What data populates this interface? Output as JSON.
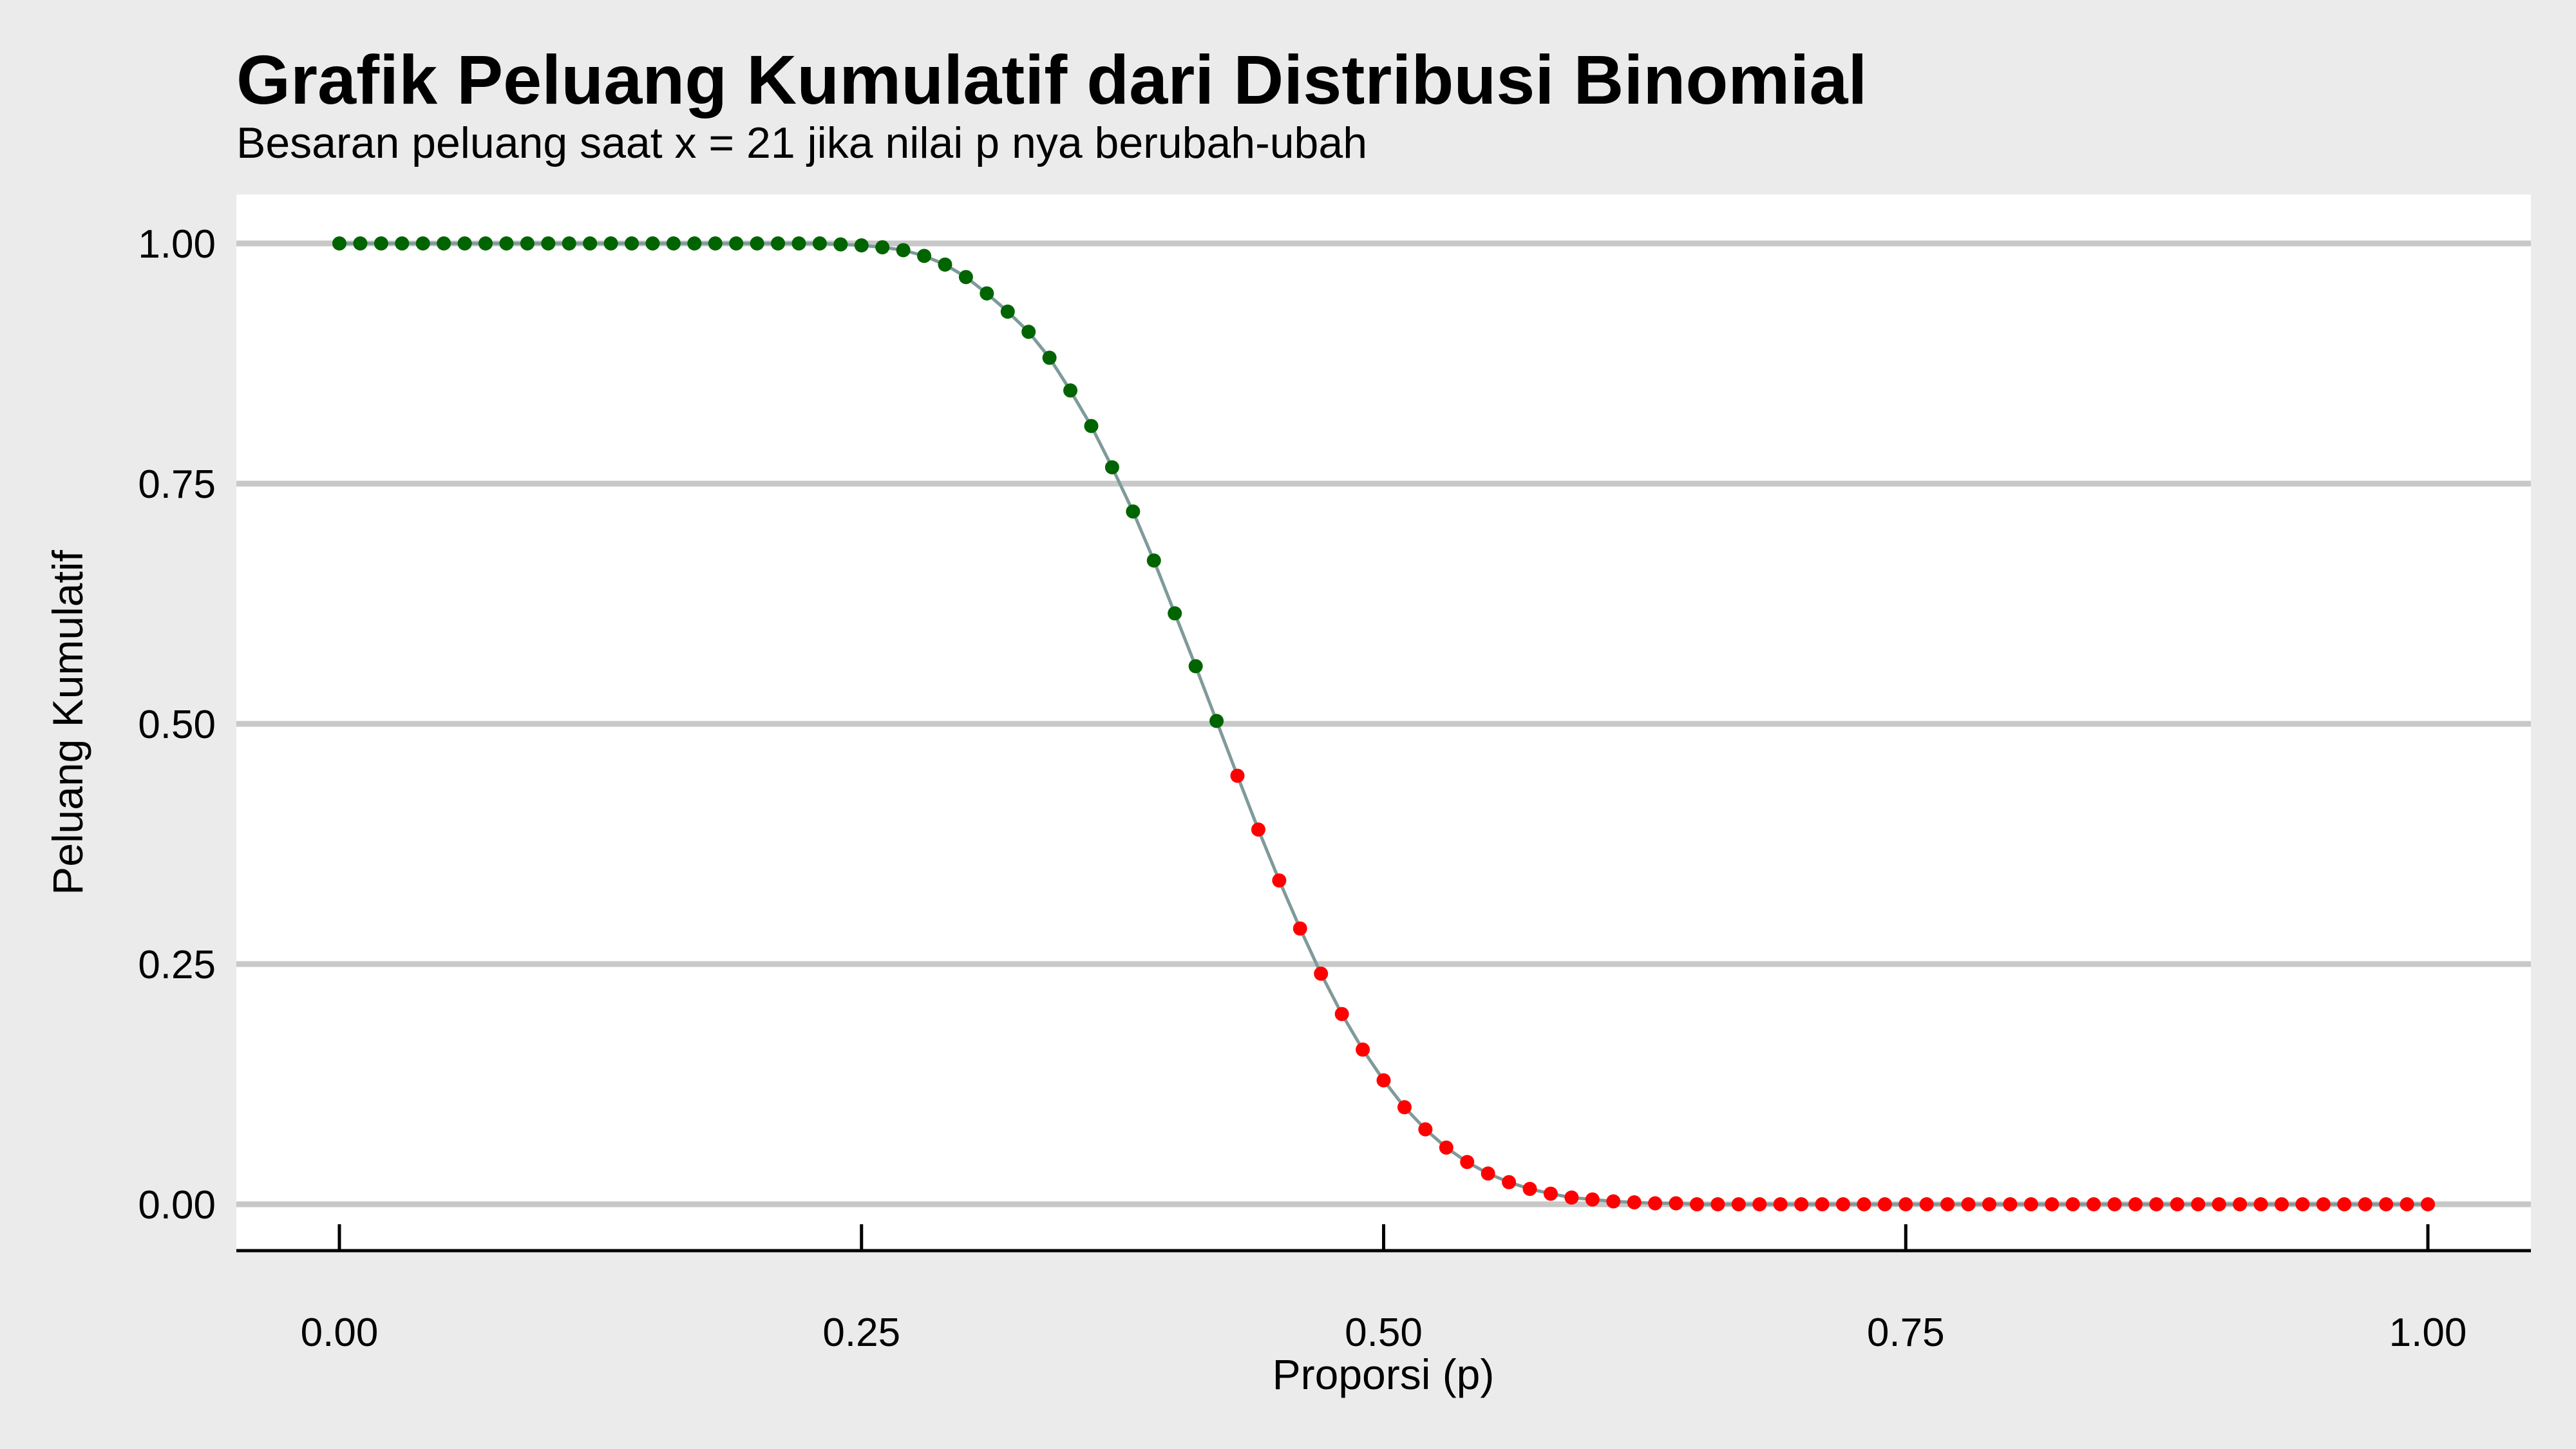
{
  "chart_data": {
    "type": "line",
    "title": "Grafik Peluang Kumulatif dari Distribusi Binomial",
    "subtitle": "Besaran peluang saat x = 21 jika nilai p nya berubah-ubah",
    "xlabel": "Proporsi (p)",
    "ylabel": "Peluang Kumulatif",
    "xlim": [
      0,
      1
    ],
    "ylim": [
      0,
      1
    ],
    "x_ticks": [
      "0.00",
      "0.25",
      "0.50",
      "0.75",
      "1.00"
    ],
    "y_ticks": [
      "0.00",
      "0.25",
      "0.50",
      "0.75",
      "1.00"
    ],
    "grid": "horizontal",
    "colors": {
      "line": "#7f9a9a",
      "point_above": "#006400",
      "point_below": "#ff0000",
      "panel": "#ffffff",
      "grid": "#c8c8c8",
      "background": "#ebebeb"
    },
    "series": [
      {
        "x": [
          0.0,
          0.01,
          0.02,
          0.03,
          0.04,
          0.05,
          0.06,
          0.07,
          0.08,
          0.09,
          0.1,
          0.11,
          0.12,
          0.13,
          0.14,
          0.15,
          0.16,
          0.17,
          0.18,
          0.19,
          0.2,
          0.21,
          0.22,
          0.23,
          0.24,
          0.25,
          0.26,
          0.27,
          0.28,
          0.29,
          0.3,
          0.31,
          0.32,
          0.33,
          0.34,
          0.35,
          0.36,
          0.37,
          0.38,
          0.39,
          0.4,
          0.41,
          0.42,
          0.43,
          0.44,
          0.45,
          0.46,
          0.47,
          0.48,
          0.49,
          0.5,
          0.51,
          0.52,
          0.53,
          0.54,
          0.55,
          0.56,
          0.57,
          0.58,
          0.59,
          0.6,
          0.61,
          0.62,
          0.63,
          0.64,
          0.65,
          0.66,
          0.67,
          0.68,
          0.69,
          0.7,
          0.71,
          0.72,
          0.73,
          0.74,
          0.75,
          0.76,
          0.77,
          0.78,
          0.79,
          0.8,
          0.81,
          0.82,
          0.83,
          0.84,
          0.85,
          0.86,
          0.87,
          0.88,
          0.89,
          0.9,
          0.91,
          0.92,
          0.93,
          0.94,
          0.95,
          0.96,
          0.97,
          0.98,
          0.99,
          1.0
        ],
        "values": [
          1.0,
          1.0,
          1.0,
          1.0,
          1.0,
          1.0,
          1.0,
          1.0,
          1.0,
          1.0,
          1.0,
          1.0,
          1.0,
          1.0,
          1.0,
          1.0,
          1.0,
          1.0,
          1.0,
          1.0,
          1.0,
          1.0,
          1.0,
          1.0,
          0.999,
          0.998,
          0.996,
          0.993,
          0.987,
          0.978,
          0.965,
          0.948,
          0.929,
          0.908,
          0.881,
          0.847,
          0.81,
          0.767,
          0.721,
          0.67,
          0.615,
          0.56,
          0.503,
          0.446,
          0.39,
          0.337,
          0.287,
          0.24,
          0.198,
          0.161,
          0.129,
          0.101,
          0.078,
          0.059,
          0.044,
          0.032,
          0.023,
          0.016,
          0.011,
          0.007,
          0.005,
          0.003,
          0.002,
          0.001,
          0.001,
          0.0,
          0.0,
          0.0,
          0.0,
          0.0,
          0.0,
          0.0,
          0.0,
          0.0,
          0.0,
          0.0,
          0.0,
          0.0,
          0.0,
          0.0,
          0.0,
          0.0,
          0.0,
          0.0,
          0.0,
          0.0,
          0.0,
          0.0,
          0.0,
          0.0,
          0.0,
          0.0,
          0.0,
          0.0,
          0.0,
          0.0,
          0.0,
          0.0,
          0.0,
          0.0,
          0.0
        ]
      }
    ]
  }
}
